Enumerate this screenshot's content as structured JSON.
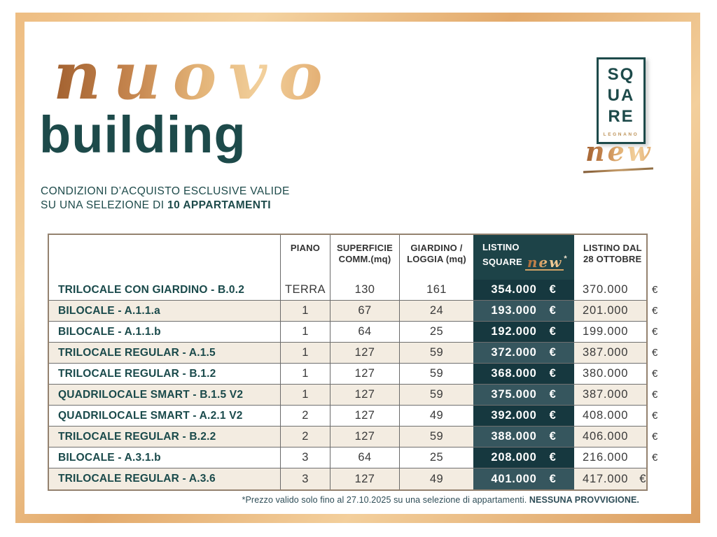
{
  "brand_colors": {
    "teal": "#1d4a4a",
    "gold": "#e0a86b",
    "cream_row": "#f3ece1",
    "price_column_dark": "#16383f",
    "price_column_light": "#36565e",
    "table_border": "#94826f"
  },
  "header": {
    "script_word": "nuovo",
    "main_word": "building",
    "subtitle_line1": "CONDIZIONI D’ACQUISTO ESCLUSIVE VALIDE",
    "subtitle_line2_prefix": "SU UNA SELEZIONE DI ",
    "subtitle_line2_bold": "10 APPARTAMENTI"
  },
  "logo": {
    "line1": "SQ",
    "line2": "UA",
    "line3": "RE",
    "city": "LEGNANO",
    "script_word": "new"
  },
  "table": {
    "headers": {
      "piano": "PIANO",
      "superficie_line1": "SUPERFICIE",
      "superficie_line2": "COMM.(mq)",
      "giardino_line1": "GIARDINO /",
      "giardino_line2": "LOGGIA (mq)",
      "listino_line1": "LISTINO",
      "listino_line2": "SQUARE",
      "listino_script": "new",
      "listino_asterisk": "*",
      "listino_dal_line1": "LISTINO DAL",
      "listino_dal_line2": "28 OTTOBRE"
    },
    "euro": "€",
    "rows": [
      {
        "name": "TRILOCALE CON GIARDINO - B.0.2",
        "piano": "TERRA",
        "superficie": "130",
        "giardino": "161",
        "listino_square": "354.000",
        "listino_dal": "370.000",
        "euro_inside": false
      },
      {
        "name": "BILOCALE - A.1.1.a",
        "piano": "1",
        "superficie": "67",
        "giardino": "24",
        "listino_square": "193.000",
        "listino_dal": "201.000",
        "euro_inside": false
      },
      {
        "name": "BILOCALE - A.1.1.b",
        "piano": "1",
        "superficie": "64",
        "giardino": "25",
        "listino_square": "192.000",
        "listino_dal": "199.000",
        "euro_inside": false
      },
      {
        "name": "TRILOCALE REGULAR - A.1.5",
        "piano": "1",
        "superficie": "127",
        "giardino": "59",
        "listino_square": "372.000",
        "listino_dal": "387.000",
        "euro_inside": false
      },
      {
        "name": "TRILOCALE REGULAR - B.1.2",
        "piano": "1",
        "superficie": "127",
        "giardino": "59",
        "listino_square": "368.000",
        "listino_dal": "380.000",
        "euro_inside": false
      },
      {
        "name": "QUADRILOCALE SMART - B.1.5 V2",
        "piano": "1",
        "superficie": "127",
        "giardino": "59",
        "listino_square": "375.000",
        "listino_dal": "387.000",
        "euro_inside": false
      },
      {
        "name": "QUADRILOCALE SMART - A.2.1 V2",
        "piano": "2",
        "superficie": "127",
        "giardino": "49",
        "listino_square": "392.000",
        "listino_dal": "408.000",
        "euro_inside": false
      },
      {
        "name": "TRILOCALE REGULAR - B.2.2",
        "piano": "2",
        "superficie": "127",
        "giardino": "59",
        "listino_square": "388.000",
        "listino_dal": "406.000",
        "euro_inside": false
      },
      {
        "name": "BILOCALE - A.3.1.b",
        "piano": "3",
        "superficie": "64",
        "giardino": "25",
        "listino_square": "208.000",
        "listino_dal": "216.000",
        "euro_inside": false
      },
      {
        "name": "TRILOCALE REGULAR - A.3.6",
        "piano": "3",
        "superficie": "127",
        "giardino": "49",
        "listino_square": "401.000",
        "listino_dal": "417.000",
        "euro_inside": true
      }
    ]
  },
  "footer": {
    "note_regular": "*Prezzo valido solo fino al 27.10.2025 su una selezione di appartamenti. ",
    "note_bold": "NESSUNA PROVVIGIONE."
  }
}
